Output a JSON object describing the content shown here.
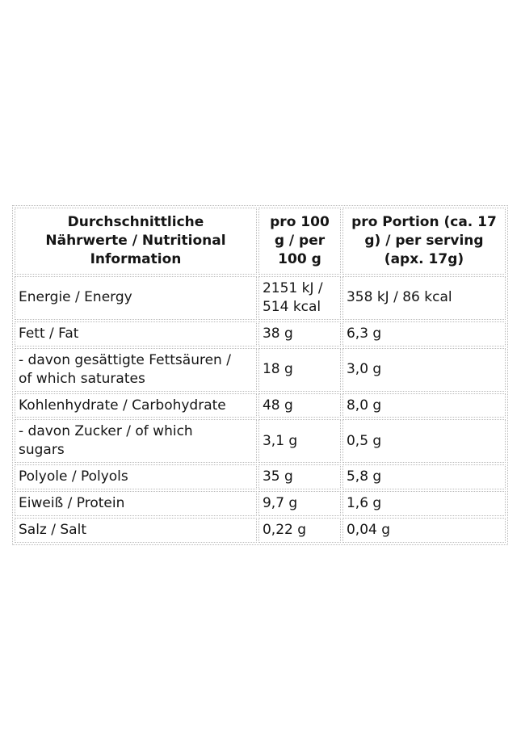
{
  "page": {
    "background": "#ffffff"
  },
  "colors": {
    "border": "#b9b9b9",
    "text": "#151515"
  },
  "table": {
    "header": {
      "col_nutrient": "Durchschnittliche\nNährwerte / Nutritional\nInformation",
      "col_per100": "pro 100\ng / per\n100 g",
      "col_portion": "pro Portion (ca. 17\ng) / per serving\n(apx. 17g)"
    },
    "rows": [
      {
        "label": "Energie / Energy",
        "per100": "2151 kJ /\n514 kcal",
        "portion": "358 kJ / 86 kcal"
      },
      {
        "label": "Fett / Fat",
        "per100": "38 g",
        "portion": "6,3 g"
      },
      {
        "label": "- davon gesättigte Fettsäuren /\nof which saturates",
        "per100": "18 g",
        "portion": "3,0 g"
      },
      {
        "label": "Kohlenhydrate / Carbohydrate",
        "per100": "48 g",
        "portion": "8,0 g"
      },
      {
        "label": "- davon Zucker / of which\nsugars",
        "per100": "3,1 g",
        "portion": "0,5 g"
      },
      {
        "label": "Polyole / Polyols",
        "per100": "35 g",
        "portion": "5,8 g"
      },
      {
        "label": "Eiweiß / Protein",
        "per100": "9,7 g",
        "portion": "1,6 g"
      },
      {
        "label": "Salz / Salt",
        "per100": "0,22 g",
        "portion": "0,04 g"
      }
    ]
  }
}
